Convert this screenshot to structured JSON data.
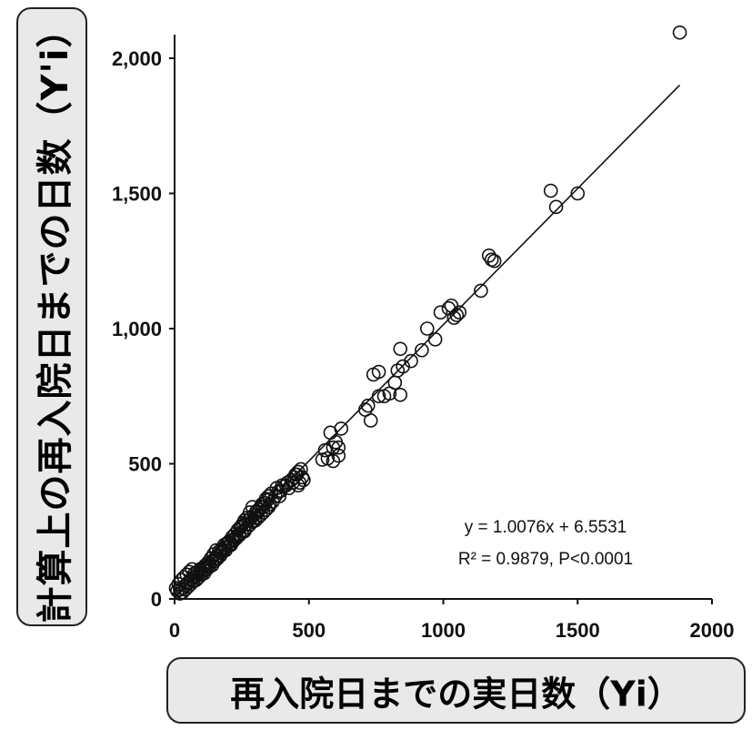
{
  "chart_data": {
    "type": "scatter",
    "xlabel": "再入院日までの実日数（Yi）",
    "ylabel": "計算上の再入院日までの日数（Y'i）",
    "xlim": [
      0,
      2000
    ],
    "ylim": [
      0,
      2000
    ],
    "x_ticks": [
      "0",
      "500",
      "1000",
      "1500",
      "2000"
    ],
    "y_ticks": [
      "0",
      "500",
      "1,000",
      "1,500",
      "2,000"
    ],
    "x_tick_values": [
      0,
      500,
      1000,
      1500,
      2000
    ],
    "y_tick_values": [
      0,
      500,
      1000,
      1500,
      2000
    ],
    "grid": false,
    "fit_line": {
      "slope": 1.0076,
      "intercept": 6.5531,
      "x_range": [
        0,
        1880
      ]
    },
    "annotations": {
      "equation": "y = 1.0076x + 6.5531",
      "r2": "R² = 0.9879, P<0.0001"
    },
    "points": [
      [
        1880,
        2095
      ],
      [
        1400,
        1510
      ],
      [
        1500,
        1500
      ],
      [
        1420,
        1450
      ],
      [
        1170,
        1270
      ],
      [
        1180,
        1255
      ],
      [
        1190,
        1250
      ],
      [
        1140,
        1140
      ],
      [
        1030,
        1085
      ],
      [
        1020,
        1075
      ],
      [
        1060,
        1060
      ],
      [
        1050,
        1050
      ],
      [
        1040,
        1040
      ],
      [
        990,
        1060
      ],
      [
        940,
        1000
      ],
      [
        970,
        960
      ],
      [
        920,
        920
      ],
      [
        880,
        880
      ],
      [
        850,
        860
      ],
      [
        840,
        925
      ],
      [
        830,
        845
      ],
      [
        760,
        840
      ],
      [
        740,
        830
      ],
      [
        820,
        800
      ],
      [
        800,
        760
      ],
      [
        840,
        755
      ],
      [
        760,
        750
      ],
      [
        780,
        750
      ],
      [
        720,
        715
      ],
      [
        710,
        700
      ],
      [
        730,
        660
      ],
      [
        620,
        630
      ],
      [
        600,
        580
      ],
      [
        610,
        560
      ],
      [
        590,
        560
      ],
      [
        580,
        615
      ],
      [
        560,
        550
      ],
      [
        570,
        520
      ],
      [
        550,
        515
      ],
      [
        610,
        530
      ],
      [
        590,
        510
      ],
      [
        470,
        480
      ],
      [
        460,
        470
      ],
      [
        450,
        460
      ],
      [
        480,
        440
      ],
      [
        460,
        420
      ],
      [
        440,
        430
      ],
      [
        420,
        430
      ],
      [
        400,
        420
      ],
      [
        380,
        410
      ],
      [
        390,
        380
      ],
      [
        360,
        390
      ],
      [
        350,
        380
      ],
      [
        340,
        370
      ],
      [
        330,
        340
      ],
      [
        320,
        340
      ],
      [
        310,
        320
      ],
      [
        300,
        300
      ],
      [
        290,
        340
      ],
      [
        280,
        320
      ],
      [
        270,
        300
      ],
      [
        260,
        290
      ],
      [
        250,
        270
      ],
      [
        260,
        250
      ],
      [
        240,
        240
      ],
      [
        230,
        230
      ],
      [
        220,
        220
      ],
      [
        210,
        200
      ],
      [
        200,
        210
      ],
      [
        190,
        190
      ],
      [
        180,
        180
      ],
      [
        170,
        170
      ],
      [
        160,
        160
      ],
      [
        150,
        150
      ],
      [
        140,
        140
      ],
      [
        130,
        130
      ],
      [
        120,
        120
      ],
      [
        110,
        110
      ],
      [
        100,
        100
      ],
      [
        90,
        95
      ],
      [
        80,
        85
      ],
      [
        70,
        80
      ],
      [
        60,
        70
      ],
      [
        50,
        60
      ],
      [
        40,
        50
      ],
      [
        30,
        40
      ],
      [
        20,
        35
      ],
      [
        10,
        30
      ],
      [
        5,
        40
      ],
      [
        15,
        55
      ],
      [
        25,
        70
      ],
      [
        35,
        80
      ],
      [
        45,
        90
      ],
      [
        55,
        100
      ],
      [
        65,
        110
      ],
      [
        75,
        95
      ],
      [
        85,
        100
      ],
      [
        95,
        110
      ],
      [
        105,
        115
      ],
      [
        115,
        125
      ],
      [
        125,
        135
      ],
      [
        135,
        150
      ],
      [
        145,
        165
      ],
      [
        155,
        180
      ],
      [
        165,
        175
      ],
      [
        175,
        185
      ],
      [
        185,
        200
      ],
      [
        195,
        205
      ],
      [
        205,
        215
      ],
      [
        215,
        230
      ],
      [
        225,
        240
      ],
      [
        235,
        255
      ],
      [
        245,
        265
      ],
      [
        255,
        280
      ],
      [
        265,
        275
      ],
      [
        275,
        290
      ],
      [
        285,
        300
      ],
      [
        295,
        310
      ],
      [
        305,
        325
      ],
      [
        315,
        330
      ],
      [
        325,
        350
      ],
      [
        335,
        355
      ],
      [
        345,
        365
      ],
      [
        355,
        350
      ],
      [
        365,
        360
      ],
      [
        375,
        380
      ],
      [
        385,
        395
      ],
      [
        395,
        400
      ],
      [
        405,
        415
      ],
      [
        415,
        420
      ],
      [
        425,
        410
      ],
      [
        435,
        440
      ],
      [
        445,
        450
      ],
      [
        455,
        460
      ],
      [
        465,
        430
      ],
      [
        475,
        450
      ],
      [
        20,
        20
      ],
      [
        30,
        25
      ],
      [
        40,
        35
      ],
      [
        50,
        45
      ],
      [
        60,
        55
      ],
      [
        70,
        65
      ],
      [
        80,
        70
      ],
      [
        90,
        80
      ],
      [
        100,
        90
      ],
      [
        110,
        95
      ],
      [
        120,
        110
      ],
      [
        130,
        120
      ],
      [
        140,
        125
      ],
      [
        150,
        140
      ],
      [
        160,
        150
      ],
      [
        170,
        160
      ],
      [
        180,
        175
      ],
      [
        190,
        180
      ],
      [
        200,
        195
      ],
      [
        210,
        205
      ],
      [
        220,
        215
      ],
      [
        230,
        225
      ],
      [
        240,
        235
      ],
      [
        250,
        245
      ],
      [
        260,
        255
      ],
      [
        270,
        265
      ],
      [
        280,
        275
      ],
      [
        290,
        285
      ],
      [
        300,
        290
      ],
      [
        310,
        300
      ],
      [
        320,
        310
      ],
      [
        330,
        320
      ],
      [
        340,
        330
      ],
      [
        350,
        340
      ]
    ]
  }
}
